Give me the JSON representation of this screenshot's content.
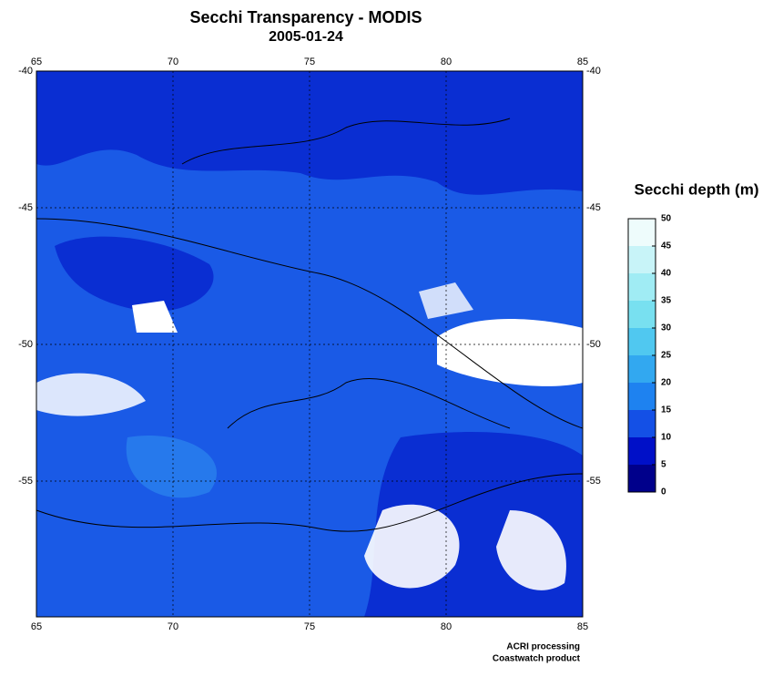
{
  "map": {
    "title": "Secchi Transparency - MODIS",
    "date": "2005-01-24",
    "lon_ticks": [
      65,
      70,
      75,
      80,
      85
    ],
    "lat_ticks": [
      -40,
      -45,
      -50,
      -55
    ]
  },
  "colorbar": {
    "label": "Secchi depth (m)",
    "ticks": [
      0,
      5,
      10,
      15,
      20,
      25,
      30,
      35,
      40,
      45,
      50
    ],
    "colors": [
      "#00008b",
      "#0010c8",
      "#1450e6",
      "#1e82f0",
      "#32a8f0",
      "#50c8f0",
      "#78e0f0",
      "#a0ecf4",
      "#c8f4f8",
      "#eefcfc"
    ]
  },
  "credits": [
    "ACRI processing",
    "Coastwatch product"
  ]
}
